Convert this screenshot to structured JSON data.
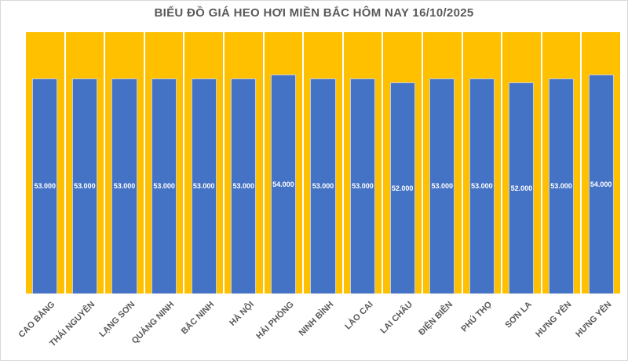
{
  "chart_data": {
    "type": "bar",
    "title": "BIỂU ĐỒ GIÁ HEO HƠI MIỀN BẮC HÔM NAY 16/10/2025",
    "categories": [
      "CAO BẰNG",
      "THÁI NGUYÊN",
      "LẠNG SƠN",
      "QUẢNG NINH",
      "BẮC NINH",
      "HÀ NỘI",
      "HẢI PHÒNG",
      "NINH BÌNH",
      "LÀO CAI",
      "LAI CHÂU",
      "ĐIỆN BIÊN",
      "PHÚ THỌ",
      "SƠN LA",
      "HƯNG YÊN",
      "HƯNG YÊN"
    ],
    "values": [
      53000,
      53000,
      53000,
      53000,
      53000,
      53000,
      54000,
      53000,
      53000,
      52000,
      53000,
      53000,
      52000,
      53000,
      54000
    ],
    "data_labels": [
      "53.000",
      "53.000",
      "53.000",
      "53.000",
      "53.000",
      "53.000",
      "54.000",
      "53.000",
      "53.000",
      "52.000",
      "53.000",
      "53.000",
      "52.000",
      "53.000",
      "54.000"
    ],
    "xlabel": "",
    "ylabel": "",
    "ylim": [
      0,
      64400
    ],
    "grid": false,
    "legend": false,
    "data_label_position": "center",
    "background_columns_full_height": true,
    "colors": {
      "bar": "#4472C4",
      "background_column": "#FFC000",
      "title_text": "#595959",
      "axis_label_text": "#595959",
      "data_label_text": "#FFFFFF",
      "chart_background": "#FFFFFF"
    }
  }
}
